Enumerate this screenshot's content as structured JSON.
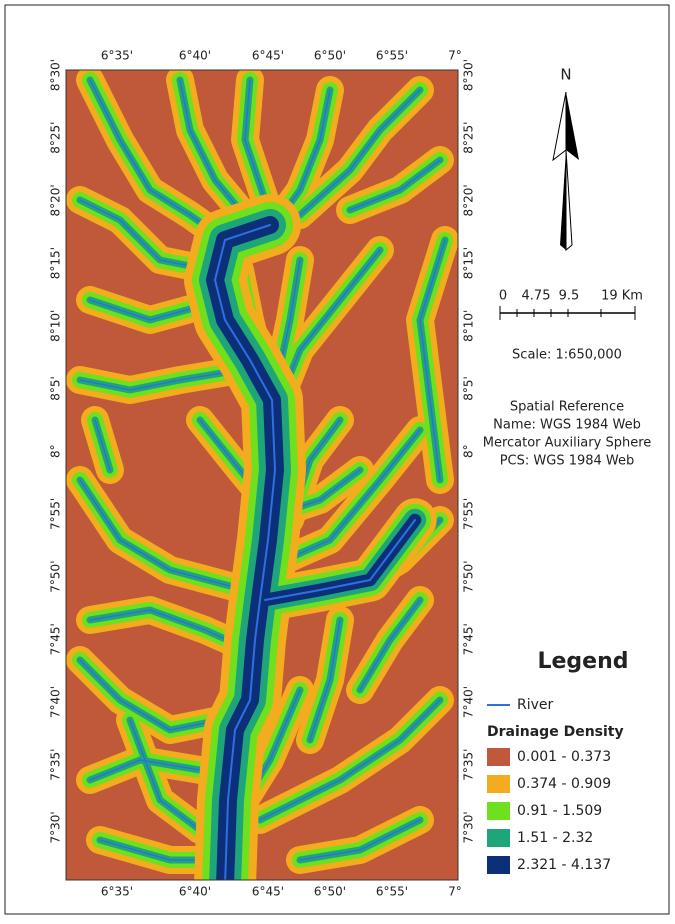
{
  "map": {
    "lon_labels": [
      "6°35'",
      "6°40'",
      "6°45'",
      "6°50'",
      "6°55'",
      "7°"
    ],
    "lat_labels": [
      "8°30'",
      "8°25'",
      "8°20'",
      "8°15'",
      "8°10'",
      "8°5'",
      "8°",
      "7°55'",
      "7°50'",
      "7°45'",
      "7°40'",
      "7°35'",
      "7°30'"
    ],
    "north_label": "N",
    "scale_bar_labels": [
      "0",
      "4.75",
      "9.5",
      "19 Km"
    ],
    "scale_text": "Scale: 1:650,000",
    "spatial_reference": [
      "Spatial Reference",
      "Name: WGS 1984 Web",
      "Mercator Auxiliary Sphere",
      "PCS: WGS 1984 Web"
    ],
    "legend": {
      "title": "Legend",
      "river": {
        "label": "River",
        "color": "#2f6fe0"
      },
      "class_title": "Drainage Density",
      "classes": [
        {
          "label": "0.001 - 0.373",
          "color": "#c0583a"
        },
        {
          "label": "0.374 - 0.909",
          "color": "#f2ac1e"
        },
        {
          "label": "0.91 - 1.509",
          "color": "#6fe01e"
        },
        {
          "label": "1.51 - 2.32",
          "color": "#1fa57a"
        },
        {
          "label": "2.321 - 4.137",
          "color": "#0c2f7a"
        }
      ]
    }
  }
}
